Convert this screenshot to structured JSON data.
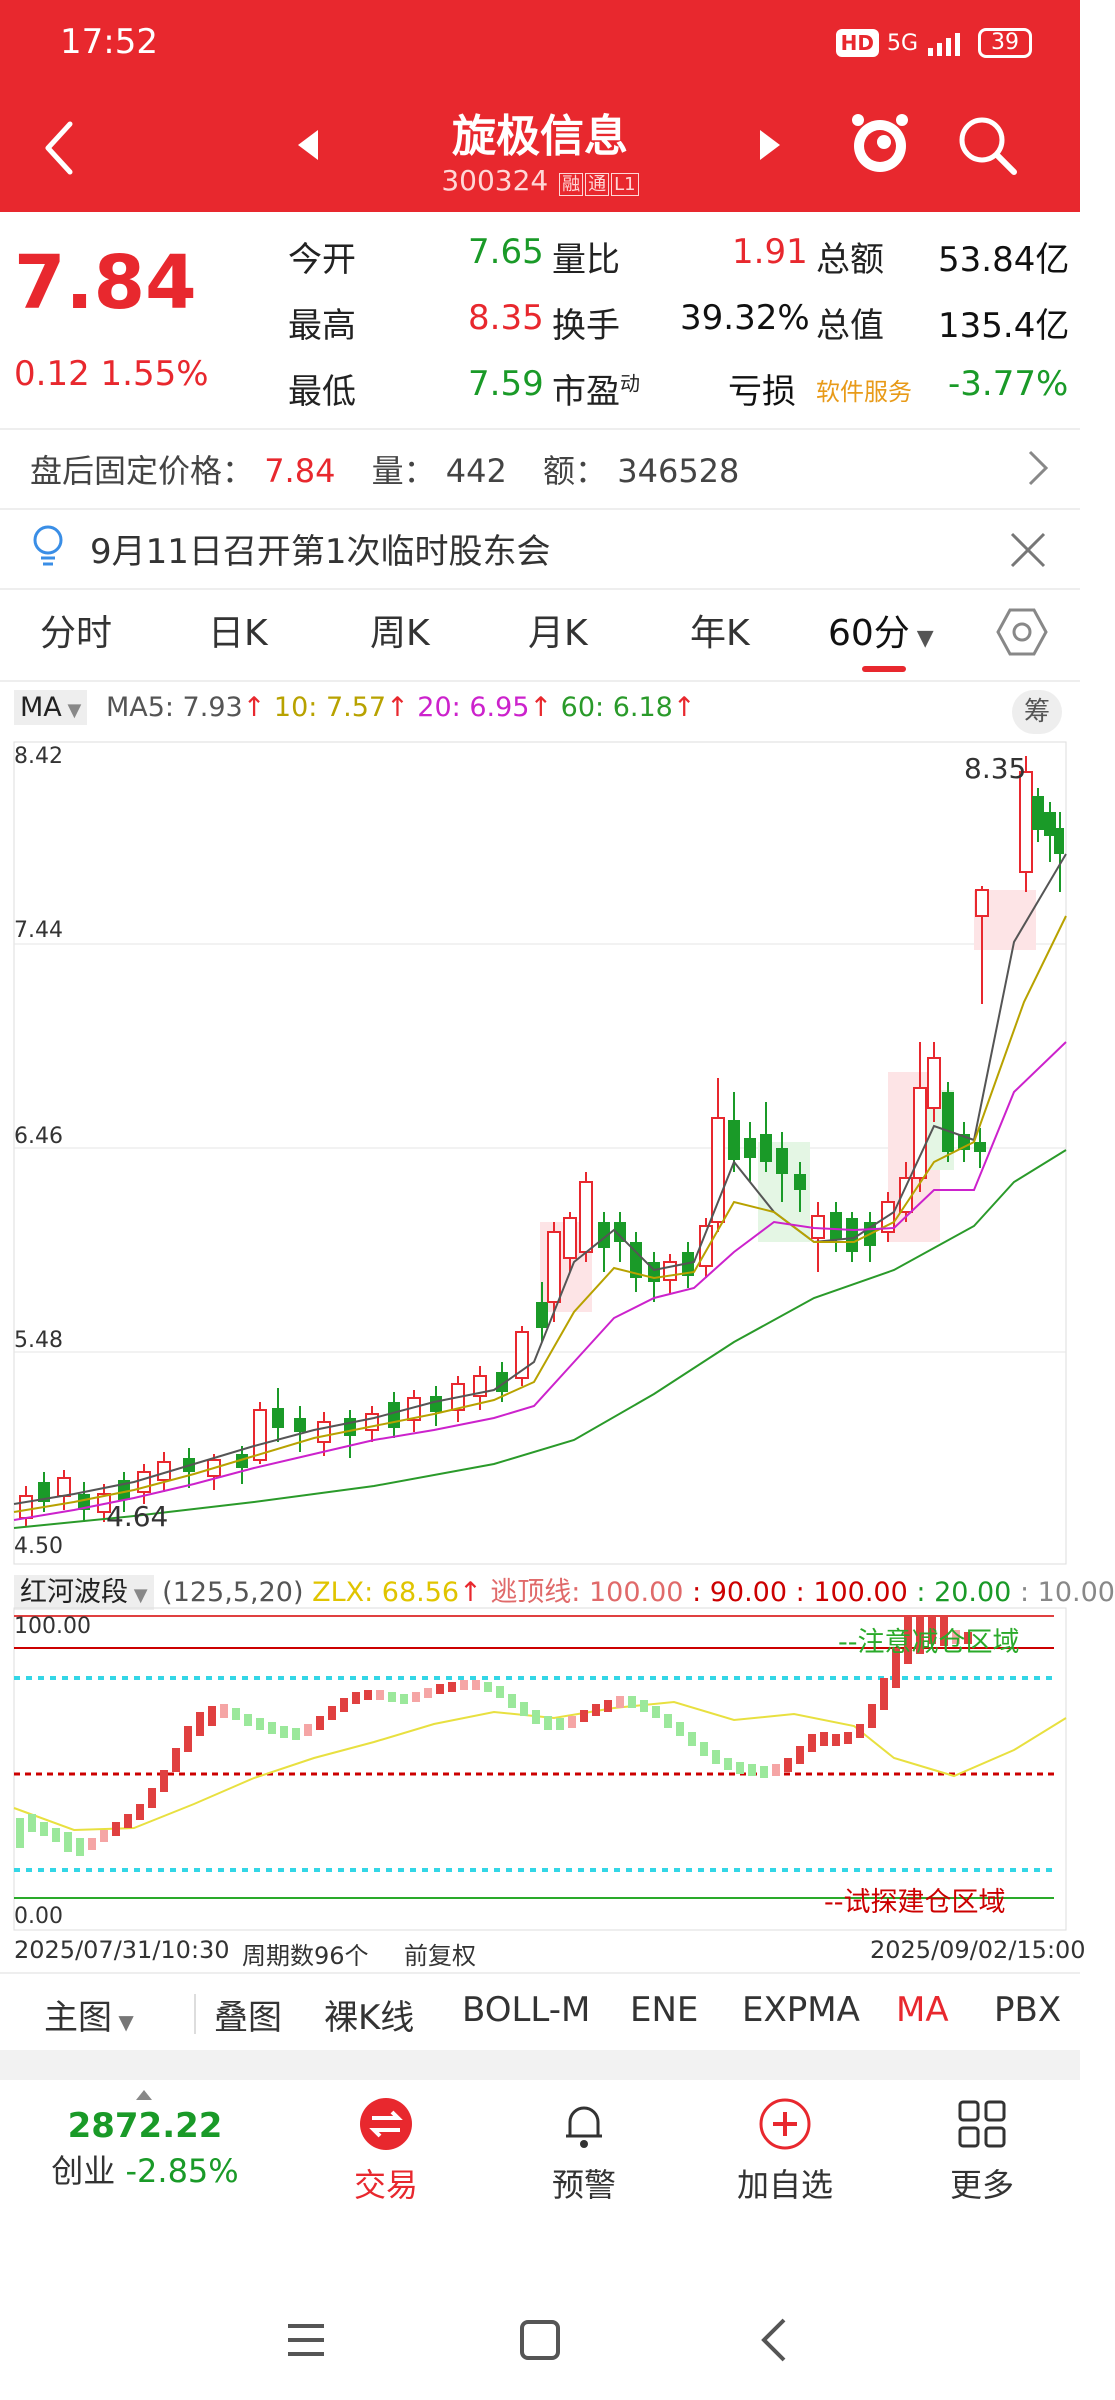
{
  "status": {
    "time": "17:52",
    "hd": "HD",
    "net": "5G",
    "battery": "39"
  },
  "header": {
    "title": "旋极信息",
    "code": "300324",
    "tag_rong": "融",
    "tag_tong": "通",
    "tag_l1": "L1"
  },
  "quote": {
    "price": "7.84",
    "change": "0.12",
    "change_pct": "1.55%",
    "open_label": "今开",
    "open": "7.65",
    "high_label": "最高",
    "high": "8.35",
    "low_label": "最低",
    "low": "7.59",
    "vr_label": "量比",
    "vr": "1.91",
    "turnover_label": "换手",
    "turnover": "39.32%",
    "pe_label": "市盈",
    "pe_sup": "动",
    "pe": "亏损",
    "amount_label": "总额",
    "amount": "53.84亿",
    "mcap_label": "总值",
    "mcap": "135.4亿",
    "sector": "软件服务",
    "sector_pct": "-3.77%"
  },
  "after_hours": {
    "label": "盘后固定价格：",
    "price": "7.84",
    "vol_label": "量：",
    "vol": "442",
    "amt_label": "额：",
    "amt": "346528"
  },
  "notice": {
    "text": "9月11日召开第1次临时股东会"
  },
  "tabs": [
    "分时",
    "日K",
    "周K",
    "月K",
    "年K",
    "60分"
  ],
  "ma": {
    "selector": "MA",
    "ma5": "MA5: 7.93",
    "ma10": "10: 7.57",
    "ma20": "20: 6.95",
    "ma60": "60: 6.18",
    "chip_btn": "筹",
    "colors": {
      "ma5": "#555555",
      "ma10": "#b8a200",
      "ma20": "#cc22cc",
      "ma60": "#2a9a2a"
    }
  },
  "main_axis": {
    "labels": [
      "8.42",
      "7.44",
      "6.46",
      "5.48",
      "4.50"
    ],
    "high_mark": "8.35",
    "low_mark": "4.64"
  },
  "indicator": {
    "name": "红河波段",
    "params": "(125,5,20)",
    "zlx": "ZLX: 68.56",
    "escape": "逃顶线: 100.00",
    "v90": ": 90.00",
    "v100": ": 100.00",
    "v20": ": 20.00",
    "v10": ": 10.00",
    "top_label": "100.00",
    "bottom_label": "0.00",
    "zone_top": "--注意减仓区域",
    "zone_bottom": "--试探建仓区域"
  },
  "dates": {
    "start": "2025/07/31/10:30",
    "count": "周期数96个",
    "adj": "前复权",
    "end": "2025/09/02/15:00"
  },
  "chart_modes": [
    "主图",
    "叠图",
    "裸K线",
    "BOLL-M",
    "ENE",
    "EXPMA",
    "MA",
    "PBX"
  ],
  "bottom_nav": {
    "index_value": "2872.22",
    "index_name": "创业",
    "index_pct": "-2.85%",
    "trade": "交易",
    "alert": "预警",
    "add": "加自选",
    "more": "更多"
  }
}
